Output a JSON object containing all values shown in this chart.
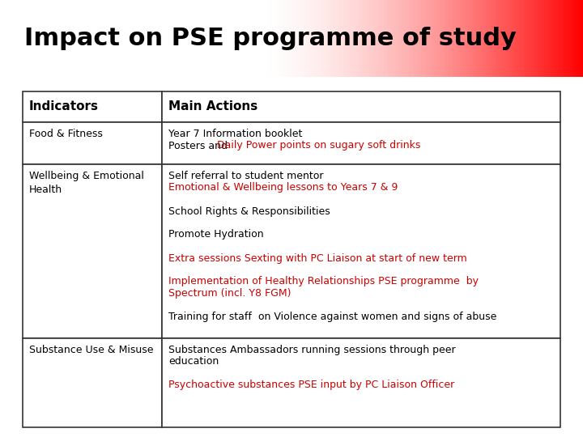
{
  "title": "Impact on PSE programme of study",
  "title_fontsize": 22,
  "title_color": "#000000",
  "header_col1": "Indicators",
  "header_col2": "Main Actions",
  "header_fontsize": 11,
  "body_fontsize": 9,
  "rows": [
    {
      "col1": "Food & Fitness",
      "col2_segments": [
        [
          {
            "text": "Year 7 Information booklet",
            "color": "#000000"
          }
        ],
        [
          {
            "text": "Posters and ",
            "color": "#000000"
          },
          {
            "text": "Daily Power points on sugary soft drinks",
            "color": "#cc0000"
          }
        ]
      ]
    },
    {
      "col1": "Wellbeing & Emotional\nHealth",
      "col2_segments": [
        [
          {
            "text": "Self referral to student mentor",
            "color": "#000000"
          }
        ],
        [
          {
            "text": "Emotional & Wellbeing lessons to Years 7 & 9",
            "color": "#cc0000"
          }
        ],
        [
          {
            "text": "",
            "color": "#000000"
          }
        ],
        [
          {
            "text": "School Rights & Responsibilities",
            "color": "#000000"
          }
        ],
        [
          {
            "text": "",
            "color": "#000000"
          }
        ],
        [
          {
            "text": "Promote Hydration",
            "color": "#000000"
          }
        ],
        [
          {
            "text": "",
            "color": "#000000"
          }
        ],
        [
          {
            "text": "Extra sessions Sexting with PC Liaison at start of new term",
            "color": "#cc0000"
          }
        ],
        [
          {
            "text": "",
            "color": "#000000"
          }
        ],
        [
          {
            "text": "Implementation of Healthy Relationships PSE programme  by",
            "color": "#cc0000"
          }
        ],
        [
          {
            "text": "Spectrum (incl. Y8 FGM)",
            "color": "#cc0000"
          }
        ],
        [
          {
            "text": "",
            "color": "#000000"
          }
        ],
        [
          {
            "text": "Training for staff  on Violence against women and signs of abuse",
            "color": "#000000"
          }
        ]
      ]
    },
    {
      "col1": "Substance Use & Misuse",
      "col2_segments": [
        [
          {
            "text": "Substances Ambassadors running sessions through peer",
            "color": "#000000"
          }
        ],
        [
          {
            "text": "education",
            "color": "#000000"
          }
        ],
        [
          {
            "text": "",
            "color": "#000000"
          }
        ],
        [
          {
            "text": "Psychoactive substances PSE input by PC Liaison Officer",
            "color": "#cc0000"
          }
        ]
      ]
    }
  ],
  "background_color": "#ffffff",
  "table_edge_color": "#333333",
  "title_gradient_start": "#ffffff",
  "title_gradient_end": "#cc0000"
}
